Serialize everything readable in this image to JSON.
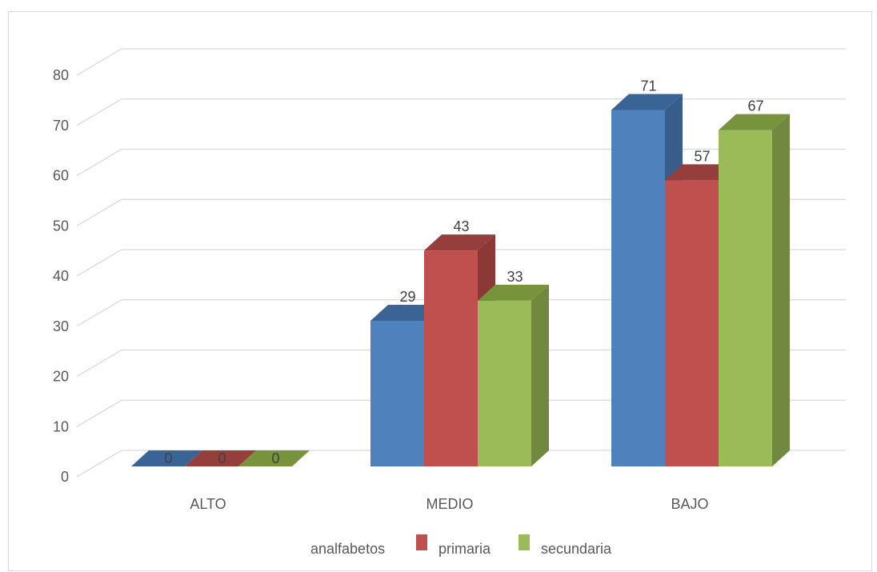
{
  "chart_data": {
    "type": "bar",
    "style": "3d-clustered-column",
    "categories": [
      "ALTO",
      "MEDIO",
      "BAJO"
    ],
    "series": [
      {
        "name": "analfabetos",
        "values": [
          0,
          29,
          71
        ],
        "color": "#4F81BD",
        "side": "#385D8A",
        "top": "#3A6496"
      },
      {
        "name": "primaria",
        "values": [
          0,
          43,
          57
        ],
        "color": "#C0504D",
        "side": "#8C3836",
        "top": "#963E3B"
      },
      {
        "name": "secundaria",
        "values": [
          0,
          33,
          67
        ],
        "color": "#9BBB59",
        "side": "#71893F",
        "top": "#77933C"
      }
    ],
    "yticks": [
      0,
      10,
      20,
      30,
      40,
      50,
      60,
      70,
      80
    ],
    "ylim": [
      0,
      80
    ],
    "grid": true,
    "legend": "bottom",
    "data_labels": true
  }
}
